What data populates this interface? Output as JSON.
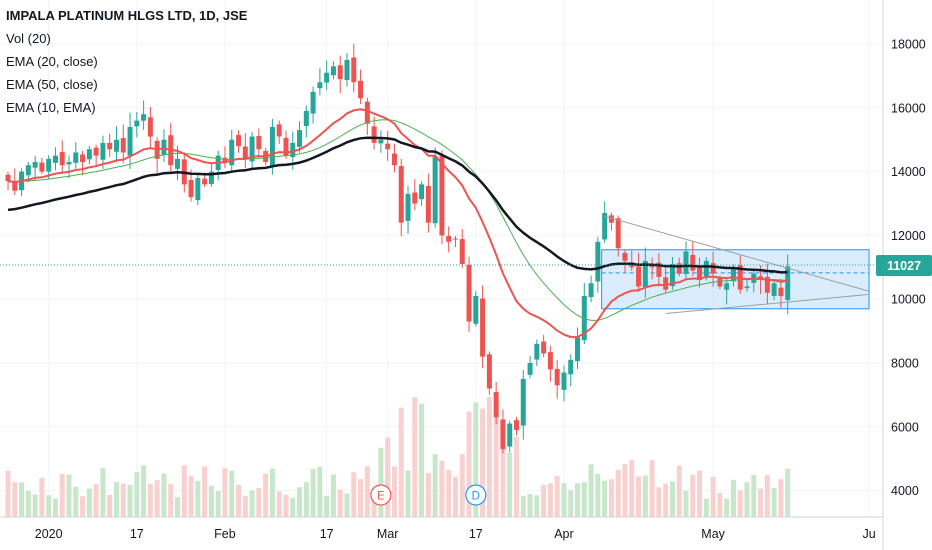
{
  "legend": {
    "title": "IMPALA PLATINUM HLGS LTD, 1D, JSE",
    "indicators": [
      "Vol (20)",
      "EMA (20, close)",
      "EMA (50, close)",
      "EMA (10, EMA)"
    ]
  },
  "price_label": {
    "value": "11027",
    "color": "#26a69a"
  },
  "colors": {
    "up": "#26a69a",
    "down": "#ef5350",
    "ema20": "#ef5350",
    "ema50": "#131722",
    "ema10": "#4caf50",
    "vol_up": "#c8e6c9",
    "vol_down": "#f8d0d0",
    "channel_fill": "#cfe6fb",
    "channel_stroke": "#2196f3",
    "wedge": "#9e9e9e"
  },
  "event_markers": [
    {
      "label": "E",
      "day": 55,
      "color": "#ef5350"
    },
    {
      "label": "D",
      "day": 69,
      "color": "#2196f3"
    }
  ],
  "chart_data": {
    "type": "candlestick",
    "title": "IMPALA PLATINUM HLGS LTD, 1D, JSE",
    "ylim": [
      3100,
      18800
    ],
    "y_ticks": [
      4000,
      6000,
      8000,
      10000,
      12000,
      14000,
      16000,
      18000
    ],
    "y_tick_labels": [
      "4000",
      "6000",
      "8000",
      "10000",
      "12000",
      "14000",
      "16000",
      "18000"
    ],
    "x_ticks": [
      {
        "label": "2020",
        "day": 6
      },
      {
        "label": "17",
        "day": 19
      },
      {
        "label": "Feb",
        "day": 32
      },
      {
        "label": "17",
        "day": 47
      },
      {
        "label": "Mar",
        "day": 56
      },
      {
        "label": "17",
        "day": 69
      },
      {
        "label": "Apr",
        "day": 82
      },
      {
        "label": "May",
        "day": 104
      },
      {
        "label": "Ju",
        "day": 127
      }
    ],
    "last_price": 11027,
    "closes": [
      13700,
      13400,
      14000,
      14200,
      14300,
      14000,
      14400,
      14500,
      14200,
      14300,
      14600,
      14300,
      14700,
      14500,
      14900,
      14700,
      15000,
      14600,
      15400,
      15600,
      15800,
      15100,
      14400,
      15000,
      14200,
      14400,
      13600,
      13200,
      13800,
      13600,
      14000,
      14500,
      14300,
      15000,
      14800,
      14400,
      15100,
      14700,
      14300,
      15400,
      15100,
      14500,
      14900,
      15300,
      15900,
      16500,
      16800,
      17100,
      17300,
      16900,
      17500,
      16800,
      16300,
      15500,
      14900,
      15000,
      14700,
      14200,
      12400,
      13300,
      13000,
      13600,
      12400,
      14500,
      12000,
      11800,
      11900,
      11100,
      9300,
      10100,
      8200,
      7200,
      6300,
      5300,
      6100,
      5900,
      7500,
      8000,
      8600,
      8300,
      7800,
      7300,
      7700,
      8100,
      8800,
      10100,
      10500,
      11800,
      12700,
      12400,
      11600,
      11200,
      11000,
      10400,
      11200,
      11000,
      10700,
      10300,
      11100,
      10800,
      11500,
      10900,
      10600,
      11200,
      10800,
      10400,
      10500,
      11000,
      10300,
      10400,
      10800,
      10600,
      10200,
      10500,
      10100,
      11027
    ],
    "series": [
      {
        "name": "EMA (20, close)"
      },
      {
        "name": "EMA (50, close)"
      },
      {
        "name": "EMA (10, EMA)"
      },
      {
        "name": "Vol (20)"
      }
    ],
    "channel": {
      "top": 11550,
      "bottom": 9700,
      "start_day": 88,
      "end_day": 127
    },
    "wedge": {
      "upper_start": [
        88,
        12600
      ],
      "upper_end": [
        127,
        10250
      ],
      "lower_start": [
        97,
        9550
      ],
      "lower_end": [
        127,
        10150
      ]
    }
  }
}
